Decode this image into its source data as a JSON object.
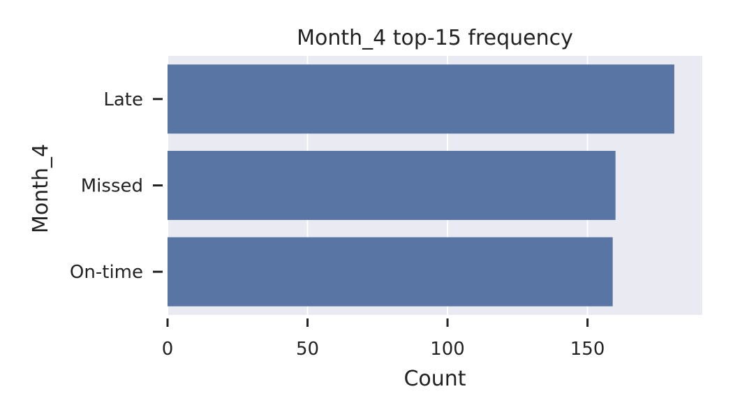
{
  "chart_data": {
    "type": "bar",
    "orientation": "horizontal",
    "title": "Month_4 top-15 frequency",
    "xlabel": "Count",
    "ylabel": "Month_4",
    "categories": [
      "Late",
      "Missed",
      "On-time"
    ],
    "values": [
      181,
      160,
      159
    ],
    "xlim": [
      0,
      190
    ],
    "xticks": [
      0,
      50,
      100,
      150
    ],
    "grid": true,
    "colors": {
      "bar": "#5975a4",
      "plot_background": "#eaeaf2",
      "gridline": "#ffffff",
      "text": "#222222"
    }
  }
}
